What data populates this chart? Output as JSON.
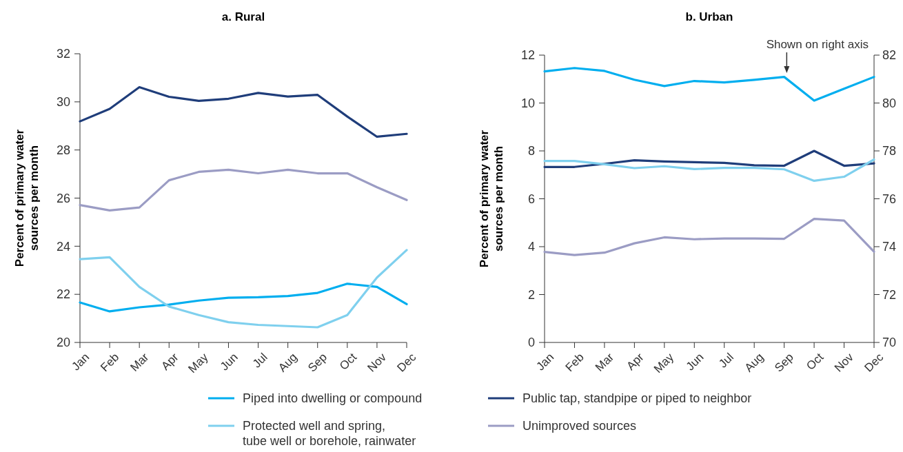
{
  "chart_data": [
    {
      "type": "line",
      "title": "a. Rural",
      "ylabel": "Percent of primary water sources per month",
      "categories": [
        "Jan",
        "Feb",
        "Mar",
        "Apr",
        "May",
        "Jun",
        "Jul",
        "Aug",
        "Sep",
        "Oct",
        "Nov",
        "Dec"
      ],
      "ylim": [
        20,
        32
      ],
      "yticks": [
        20,
        22,
        24,
        26,
        28,
        30,
        32
      ],
      "grid": false,
      "legend": false,
      "series": [
        {
          "color": "#00aeef",
          "values": [
            21.66,
            21.29,
            21.46,
            21.57,
            21.74,
            21.86,
            21.88,
            21.93,
            22.06,
            22.44,
            22.31,
            21.59
          ]
        },
        {
          "color": "#1f3d7a",
          "values": [
            29.19,
            29.71,
            30.61,
            30.21,
            30.04,
            30.13,
            30.37,
            30.22,
            30.29,
            29.39,
            28.55,
            28.67
          ]
        },
        {
          "color": "#7fd0ee",
          "values": [
            23.46,
            23.54,
            22.31,
            21.49,
            21.14,
            20.84,
            20.73,
            20.68,
            20.63,
            21.14,
            22.7,
            23.84
          ]
        },
        {
          "color": "#9b9cc4",
          "values": [
            25.71,
            25.49,
            25.61,
            26.74,
            27.09,
            27.18,
            27.03,
            27.18,
            27.03,
            27.03,
            26.45,
            25.92
          ]
        }
      ]
    },
    {
      "type": "line",
      "title": "b. Urban",
      "ylabel": "Percent of primary water sources per month",
      "categories": [
        "Jan",
        "Feb",
        "Mar",
        "Apr",
        "May",
        "Jun",
        "Jul",
        "Aug",
        "Sep",
        "Oct",
        "Nov",
        "Dec"
      ],
      "ylim": [
        0,
        12
      ],
      "yticks": [
        0,
        2,
        4,
        6,
        8,
        10,
        12
      ],
      "y2lim": [
        70,
        82
      ],
      "y2ticks": [
        70,
        72,
        74,
        76,
        78,
        80,
        82
      ],
      "grid": false,
      "legend": "bottom",
      "annotations": [
        "Shown on right axis"
      ],
      "series": [
        {
          "name": "Piped into dwelling or compound",
          "color": "#00aeef",
          "axis": "y2",
          "values": [
            81.32,
            81.46,
            81.34,
            80.97,
            80.71,
            80.92,
            80.86,
            80.97,
            81.09,
            80.1,
            80.6,
            81.09
          ]
        },
        {
          "name": "Public tap, standpipe or piped to neighbor",
          "color": "#1f3d7a",
          "values": [
            7.33,
            7.33,
            7.46,
            7.61,
            7.56,
            7.53,
            7.5,
            7.4,
            7.38,
            8.0,
            7.38,
            7.48
          ]
        },
        {
          "name": "Protected well and spring, tube well or borehole, rainwater",
          "color": "#7fd0ee",
          "values": [
            7.58,
            7.58,
            7.44,
            7.28,
            7.36,
            7.24,
            7.29,
            7.29,
            7.23,
            6.75,
            6.92,
            7.64
          ]
        },
        {
          "name": "Unimproved sources",
          "color": "#9b9cc4",
          "values": [
            3.78,
            3.65,
            3.75,
            4.14,
            4.39,
            4.31,
            4.34,
            4.34,
            4.33,
            5.16,
            5.09,
            3.79
          ]
        }
      ]
    }
  ]
}
